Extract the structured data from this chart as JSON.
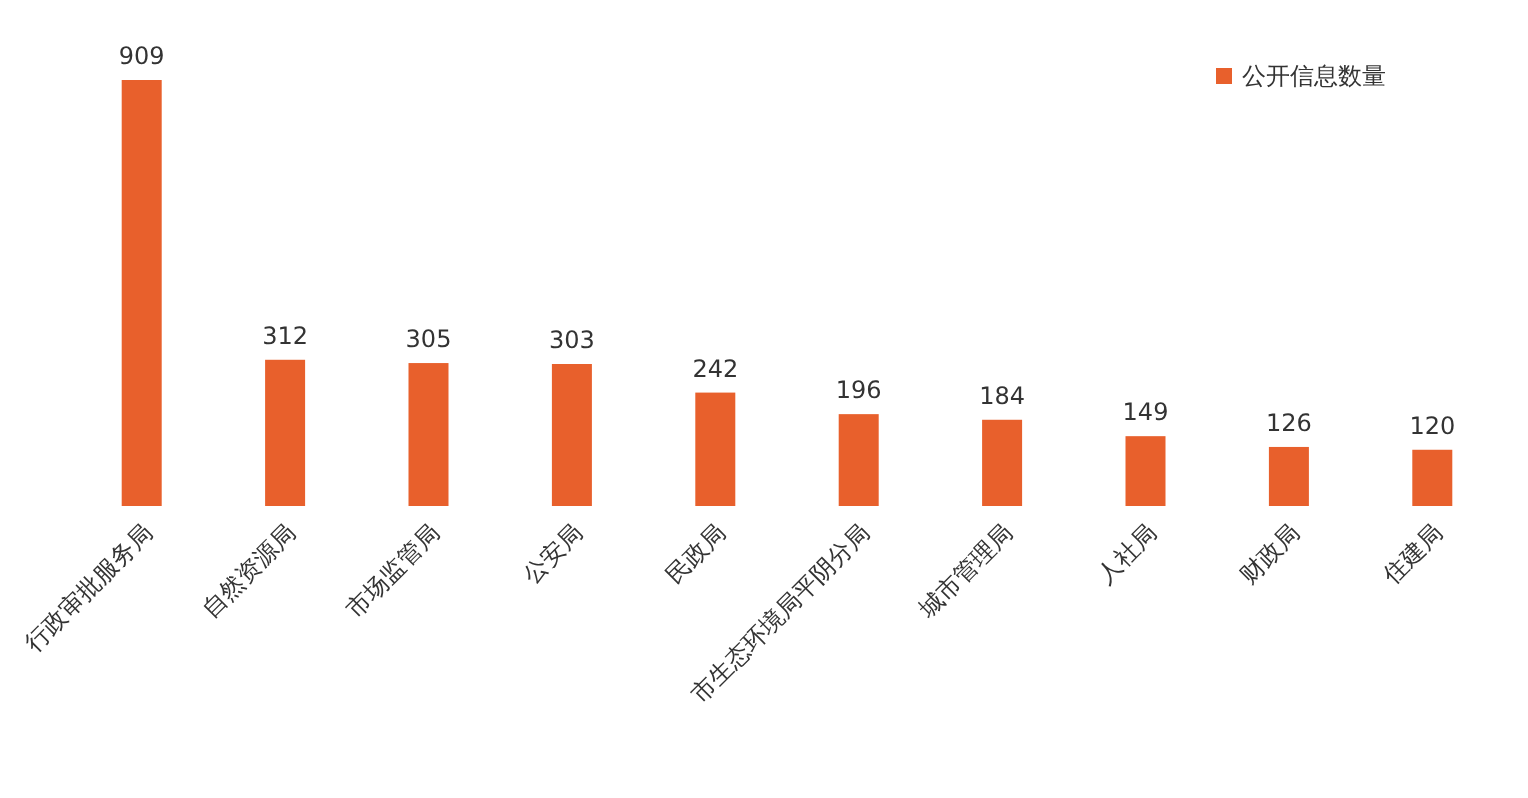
{
  "chart_data": {
    "type": "bar",
    "categories": [
      "行政审批服务局",
      "自然资源局",
      "市场监管局",
      "公安局",
      "民政局",
      "市生态环境局平阴分局",
      "城市管理局",
      "人社局",
      "财政局",
      "住建局"
    ],
    "series": [
      {
        "name": "公开信息数量",
        "color": "#e8602c",
        "values": [
          909,
          312,
          305,
          303,
          242,
          196,
          184,
          149,
          126,
          120
        ]
      }
    ],
    "data_labels": true,
    "legend": "top right"
  }
}
